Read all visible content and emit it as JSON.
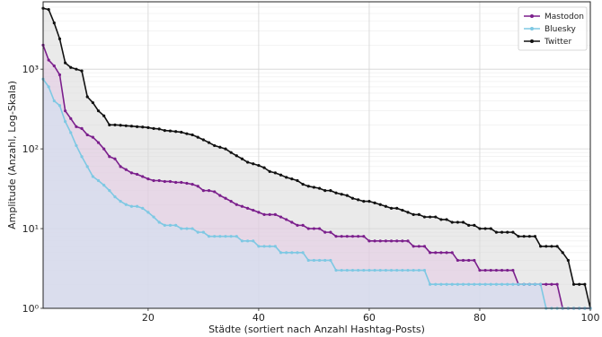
{
  "chart_data": {
    "type": "area",
    "title": "",
    "xlabel": "Städte (sortiert nach Anzahl Hashtag-Posts)",
    "ylabel": "Amplitude (Anzahl, Log-Skala)",
    "yscale": "log",
    "xlim": [
      1,
      100
    ],
    "ylim": [
      1,
      7000
    ],
    "x_ticks": [
      20,
      40,
      60,
      80,
      100
    ],
    "y_ticks": [
      {
        "value": 1,
        "label": "10⁰"
      },
      {
        "value": 10,
        "label": "10¹"
      },
      {
        "value": 100,
        "label": "10²"
      },
      {
        "value": 1000,
        "label": "10³"
      }
    ],
    "grid": true,
    "legend_position": "top-right",
    "x": [
      1,
      2,
      3,
      4,
      5,
      6,
      7,
      8,
      9,
      10,
      11,
      12,
      13,
      14,
      15,
      16,
      17,
      18,
      19,
      20,
      21,
      22,
      23,
      24,
      25,
      26,
      27,
      28,
      29,
      30,
      31,
      32,
      33,
      34,
      35,
      36,
      37,
      38,
      39,
      40,
      41,
      42,
      43,
      44,
      45,
      46,
      47,
      48,
      49,
      50,
      51,
      52,
      53,
      54,
      55,
      56,
      57,
      58,
      59,
      60,
      61,
      62,
      63,
      64,
      65,
      66,
      67,
      68,
      69,
      70,
      71,
      72,
      73,
      74,
      75,
      76,
      77,
      78,
      79,
      80,
      81,
      82,
      83,
      84,
      85,
      86,
      87,
      88,
      89,
      90,
      91,
      92,
      93,
      94,
      95,
      96,
      97,
      98,
      99,
      100
    ],
    "series": [
      {
        "name": "Twitter",
        "color": "#111111",
        "fill": "#d9d9d9",
        "values": [
          5800,
          5600,
          3800,
          2400,
          1200,
          1050,
          1000,
          950,
          450,
          380,
          300,
          260,
          200,
          200,
          198,
          195,
          193,
          190,
          188,
          185,
          180,
          178,
          170,
          168,
          165,
          162,
          155,
          150,
          140,
          130,
          120,
          110,
          105,
          100,
          90,
          82,
          75,
          68,
          65,
          62,
          58,
          52,
          50,
          47,
          44,
          42,
          40,
          36,
          34,
          33,
          32,
          30,
          30,
          28,
          27,
          26,
          24,
          23,
          22,
          22,
          21,
          20,
          19,
          18,
          18,
          17,
          16,
          15,
          15,
          14,
          14,
          14,
          13,
          13,
          12,
          12,
          12,
          11,
          11,
          10,
          10,
          10,
          9,
          9,
          9,
          9,
          8,
          8,
          8,
          8,
          6,
          6,
          6,
          6,
          5,
          4,
          2,
          2,
          2,
          1
        ]
      },
      {
        "name": "Mastodon",
        "color": "#7b1f8c",
        "fill": "#e3c8e3",
        "values": [
          2000,
          1300,
          1100,
          850,
          300,
          240,
          190,
          180,
          150,
          140,
          120,
          100,
          80,
          75,
          60,
          55,
          50,
          48,
          45,
          42,
          40,
          40,
          39,
          39,
          38,
          38,
          37,
          36,
          34,
          30,
          30,
          29,
          26,
          24,
          22,
          20,
          19,
          18,
          17,
          16,
          15,
          15,
          15,
          14,
          13,
          12,
          11,
          11,
          10,
          10,
          10,
          9,
          9,
          8,
          8,
          8,
          8,
          8,
          8,
          7,
          7,
          7,
          7,
          7,
          7,
          7,
          7,
          6,
          6,
          6,
          5,
          5,
          5,
          5,
          5,
          4,
          4,
          4,
          4,
          3,
          3,
          3,
          3,
          3,
          3,
          3,
          2,
          2,
          2,
          2,
          2,
          2,
          2,
          2,
          1,
          1,
          1,
          1,
          1,
          1
        ]
      },
      {
        "name": "Bluesky",
        "color": "#7ec8e3",
        "fill": "#cfe2f2",
        "values": [
          750,
          600,
          400,
          350,
          220,
          160,
          110,
          80,
          60,
          45,
          40,
          35,
          30,
          25,
          22,
          20,
          19,
          19,
          18,
          16,
          14,
          12,
          11,
          11,
          11,
          10,
          10,
          10,
          9,
          9,
          8,
          8,
          8,
          8,
          8,
          8,
          7,
          7,
          7,
          6,
          6,
          6,
          6,
          5,
          5,
          5,
          5,
          5,
          4,
          4,
          4,
          4,
          4,
          3,
          3,
          3,
          3,
          3,
          3,
          3,
          3,
          3,
          3,
          3,
          3,
          3,
          3,
          3,
          3,
          3,
          2,
          2,
          2,
          2,
          2,
          2,
          2,
          2,
          2,
          2,
          2,
          2,
          2,
          2,
          2,
          2,
          2,
          2,
          2,
          2,
          2,
          1,
          1,
          1,
          1,
          1,
          1,
          1,
          1,
          1
        ]
      }
    ],
    "legend_order": [
      "Mastodon",
      "Bluesky",
      "Twitter"
    ]
  }
}
